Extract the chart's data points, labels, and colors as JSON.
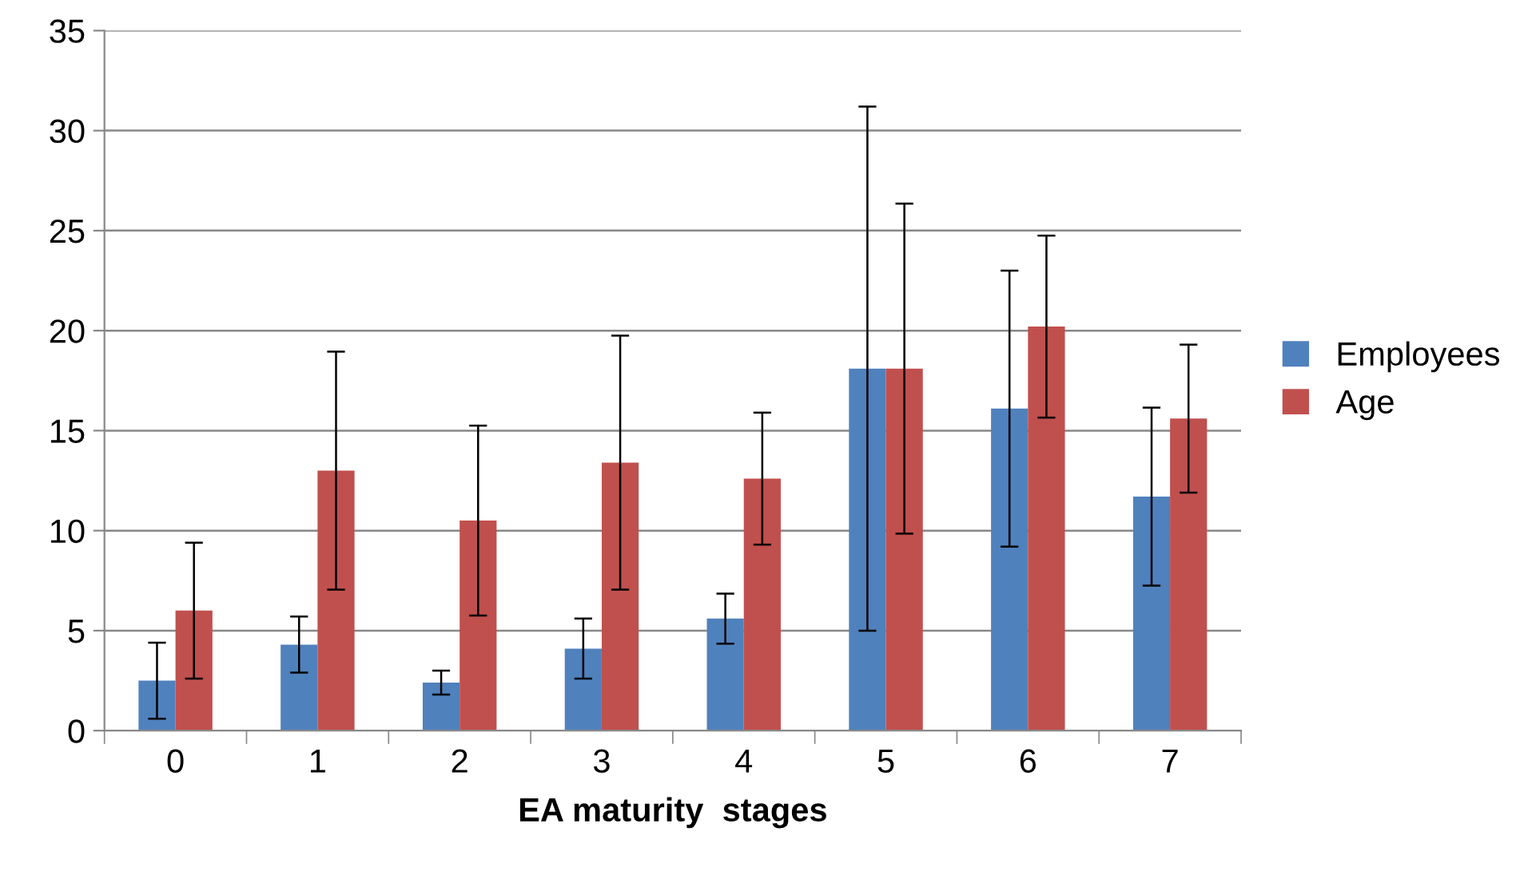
{
  "chart_data": {
    "type": "bar",
    "xlabel": "EA maturity  stages",
    "categories": [
      "0",
      "1",
      "2",
      "3",
      "4",
      "5",
      "6",
      "7"
    ],
    "series": [
      {
        "name": "Employees",
        "color": "#4f81bd",
        "values": [
          2.5,
          4.3,
          2.4,
          4.1,
          5.6,
          18.1,
          16.1,
          11.7
        ],
        "errors": [
          1.9,
          1.4,
          0.6,
          1.5,
          1.25,
          13.1,
          6.9,
          4.45
        ]
      },
      {
        "name": "Age",
        "color": "#c0504d",
        "values": [
          6.0,
          13.0,
          10.5,
          13.4,
          12.6,
          18.1,
          20.2,
          15.6
        ],
        "errors": [
          3.4,
          5.95,
          4.75,
          6.35,
          3.3,
          8.25,
          4.55,
          3.7
        ]
      }
    ],
    "ylim": [
      0,
      35
    ],
    "yticks": [
      0,
      5,
      10,
      15,
      20,
      25,
      30,
      35
    ],
    "grid": "y",
    "legend": "right"
  }
}
